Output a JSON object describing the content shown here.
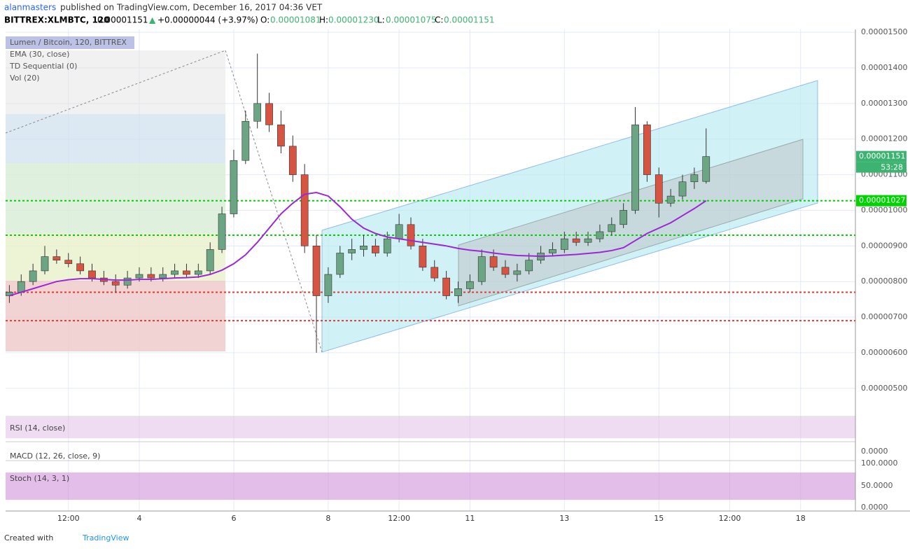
{
  "header": {
    "author": "alanmasters",
    "published": "published on TradingView.com, December 16, 2017 04:36 VET",
    "symbol": "BITTREX:XLMBTC, 120",
    "last": "0.00001151",
    "change": "+0.00000044 (+3.97%)",
    "o_label": "O:",
    "open": "0.00001081",
    "h_label": "H:",
    "high": "0.00001230",
    "l_label": "L:",
    "low": "0.00001075",
    "c_label": "C:",
    "close": "0.00001151"
  },
  "footer": {
    "created": "Created with",
    "brand": "TradingView"
  },
  "chart_data": {
    "type": "candlestick",
    "legend": [
      "Lumen / Bitcoin, 120, BITTREX",
      "EMA (30, close)",
      "TD Sequential (0)",
      "Vol (20)"
    ],
    "up_color": "#6ba583",
    "down_color": "#d75442",
    "ema_color": "#9c27d6",
    "grid": true,
    "xlim": [
      1.17,
      19.16
    ],
    "xticks": [
      {
        "value": 2.5,
        "label": "12:00"
      },
      4,
      6,
      8,
      {
        "value": 9.5,
        "label": "12:00"
      },
      11,
      13,
      15,
      {
        "value": 16.5,
        "label": "12:00"
      },
      18
    ],
    "ylim": [
      4.21e-06,
      1.508e-05
    ],
    "yticks": [
      {
        "value": 5e-06,
        "label": "0.00000500"
      },
      {
        "value": 6e-06,
        "label": "0.00000600"
      },
      {
        "value": 7e-06,
        "label": "0.00000700"
      },
      {
        "value": 8e-06,
        "label": "0.00000800"
      },
      {
        "value": 9e-06,
        "label": "0.00000900"
      },
      {
        "value": 1e-05,
        "label": "0.00001000"
      },
      {
        "value": 1.1e-05,
        "label": "0.00001100"
      },
      {
        "value": 1.2e-05,
        "label": "0.00001200"
      },
      {
        "value": 1.3e-05,
        "label": "0.00001300"
      },
      {
        "value": 1.4e-05,
        "label": "0.00001400"
      },
      {
        "value": 1.5e-05,
        "label": "0.00001500"
      }
    ],
    "x": [
      1.25,
      1.5,
      1.75,
      2,
      2.25,
      2.5,
      2.75,
      3,
      3.25,
      3.5,
      3.75,
      4,
      4.25,
      4.5,
      4.75,
      5,
      5.25,
      5.5,
      5.75,
      6,
      6.25,
      6.5,
      6.75,
      7,
      7.25,
      7.5,
      7.75,
      8,
      8.25,
      8.5,
      8.75,
      9,
      9.25,
      9.5,
      9.75,
      10,
      10.25,
      10.5,
      10.75,
      11,
      11.25,
      11.5,
      11.75,
      12,
      12.25,
      12.5,
      12.75,
      13,
      13.25,
      13.5,
      13.75,
      14,
      14.25,
      14.5,
      14.75,
      15,
      15.25,
      15.5,
      15.75,
      16
    ],
    "open": [
      7.6e-06,
      7.7e-06,
      8e-06,
      8.3e-06,
      8.7e-06,
      8.6e-06,
      8.5e-06,
      8.3e-06,
      8.1e-06,
      8e-06,
      7.9e-06,
      8.1e-06,
      8.2e-06,
      8.1e-06,
      8.2e-06,
      8.3e-06,
      8.2e-06,
      8.3e-06,
      8.9e-06,
      9.9e-06,
      1.14e-05,
      1.25e-05,
      1.3e-05,
      1.24e-05,
      1.18e-05,
      1.1e-05,
      9e-06,
      7.6e-06,
      8.2e-06,
      8.8e-06,
      8.9e-06,
      9e-06,
      8.8e-06,
      9.2e-06,
      9.6e-06,
      9e-06,
      8.4e-06,
      8.1e-06,
      7.6e-06,
      7.8e-06,
      8e-06,
      8.7e-06,
      8.4e-06,
      8.2e-06,
      8.3e-06,
      8.6e-06,
      8.8e-06,
      8.9e-06,
      9.2e-06,
      9.1e-06,
      9.2e-06,
      9.4e-06,
      9.6e-06,
      1e-05,
      1.24e-05,
      1.1e-05,
      1.02e-05,
      1.04e-05,
      1.08e-05,
      1.081e-05
    ],
    "high": [
      7.9e-06,
      8.2e-06,
      8.5e-06,
      9e-06,
      8.9e-06,
      8.8e-06,
      8.7e-06,
      8.5e-06,
      8.3e-06,
      8.2e-06,
      8.3e-06,
      8.4e-06,
      8.4e-06,
      8.4e-06,
      8.5e-06,
      8.5e-06,
      8.5e-06,
      9.1e-06,
      1.01e-05,
      1.17e-05,
      1.28e-05,
      1.44e-05,
      1.33e-05,
      1.28e-05,
      1.21e-05,
      1.13e-05,
      9.3e-06,
      8.4e-06,
      9e-06,
      9.2e-06,
      9.3e-06,
      9.2e-06,
      9.4e-06,
      9.9e-06,
      9.8e-06,
      9.2e-06,
      8.6e-06,
      8.3e-06,
      8e-06,
      8.2e-06,
      8.9e-06,
      8.9e-06,
      8.6e-06,
      8.5e-06,
      8.8e-06,
      9e-06,
      9.1e-06,
      9.4e-06,
      9.4e-06,
      9.4e-06,
      9.6e-06,
      9.8e-06,
      1.02e-05,
      1.29e-05,
      1.25e-05,
      1.12e-05,
      1.06e-05,
      1.1e-05,
      1.12e-05,
      1.23e-05
    ],
    "low": [
      7.4e-06,
      7.6e-06,
      7.9e-06,
      8.2e-06,
      8.5e-06,
      8.4e-06,
      8.2e-06,
      8e-06,
      7.9e-06,
      7.7e-06,
      7.8e-06,
      8e-06,
      8e-06,
      8e-06,
      8.1e-06,
      8.1e-06,
      8.1e-06,
      8.2e-06,
      8.8e-06,
      9.8e-06,
      1.13e-05,
      1.23e-05,
      1.22e-05,
      1.16e-05,
      1.08e-05,
      8.8e-06,
      6e-06,
      7.4e-06,
      8.1e-06,
      8.6e-06,
      8.7e-06,
      8.7e-06,
      8.7e-06,
      9.1e-06,
      8.9e-06,
      8.3e-06,
      8e-06,
      7.5e-06,
      7.4e-06,
      7.7e-06,
      7.9e-06,
      8.3e-06,
      8.1e-06,
      8e-06,
      8.2e-06,
      8.5e-06,
      8.7e-06,
      8.8e-06,
      9e-06,
      9e-06,
      9.1e-06,
      9.3e-06,
      9.5e-06,
      9.9e-06,
      1.08e-05,
      9.8e-06,
      1.01e-05,
      1.03e-05,
      1.06e-05,
      1.075e-05
    ],
    "close": [
      7.7e-06,
      8e-06,
      8.3e-06,
      8.7e-06,
      8.6e-06,
      8.5e-06,
      8.3e-06,
      8.1e-06,
      8e-06,
      7.9e-06,
      8.1e-06,
      8.2e-06,
      8.1e-06,
      8.2e-06,
      8.3e-06,
      8.2e-06,
      8.3e-06,
      8.9e-06,
      9.9e-06,
      1.14e-05,
      1.25e-05,
      1.3e-05,
      1.24e-05,
      1.18e-05,
      1.1e-05,
      9e-06,
      7.6e-06,
      8.2e-06,
      8.8e-06,
      8.9e-06,
      9e-06,
      8.8e-06,
      9.2e-06,
      9.6e-06,
      9e-06,
      8.4e-06,
      8.1e-06,
      7.6e-06,
      7.8e-06,
      8e-06,
      8.7e-06,
      8.4e-06,
      8.2e-06,
      8.3e-06,
      8.6e-06,
      8.8e-06,
      8.9e-06,
      9.2e-06,
      9.1e-06,
      9.2e-06,
      9.4e-06,
      9.6e-06,
      1e-05,
      1.24e-05,
      1.1e-05,
      1.02e-05,
      1.04e-05,
      1.08e-05,
      1.1e-05,
      1.151e-05
    ],
    "ema": [
      7.6e-06,
      7.7e-06,
      7.8e-06,
      7.9e-06,
      8e-06,
      8.05e-06,
      8.08e-06,
      8.08e-06,
      8.06e-06,
      8.04e-06,
      8.04e-06,
      8.06e-06,
      8.06e-06,
      8.08e-06,
      8.1e-06,
      8.11e-06,
      8.13e-06,
      8.2e-06,
      8.32e-06,
      8.5e-06,
      8.75e-06,
      9.1e-06,
      9.5e-06,
      9.9e-06,
      1.02e-05,
      1.045e-05,
      1.05e-05,
      1.04e-05,
      1.01e-05,
      9.75e-06,
      9.5e-06,
      9.35e-06,
      9.25e-06,
      9.2e-06,
      9.15e-06,
      9.1e-06,
      9.05e-06,
      9e-06,
      8.93e-06,
      8.88e-06,
      8.85e-06,
      8.8e-06,
      8.76e-06,
      8.73e-06,
      8.72e-06,
      8.71e-06,
      8.72e-06,
      8.74e-06,
      8.76e-06,
      8.79e-06,
      8.82e-06,
      8.87e-06,
      8.95e-06,
      9.15e-06,
      9.35e-06,
      9.5e-06,
      9.65e-06,
      9.85e-06,
      1.005e-05,
      1.027e-05
    ],
    "levels": [
      {
        "value": 1.027e-05,
        "color": "#00d400"
      },
      {
        "value": 9.3e-06,
        "color": "#00d400"
      },
      {
        "value": 7.7e-06,
        "color": "#e53935"
      },
      {
        "value": 6.9e-06,
        "color": "#e53935"
      }
    ],
    "price_labels": [
      {
        "value": 1.151e-05,
        "label": "0.00001151",
        "color": "#3cb371"
      },
      {
        "value": 1.027e-05,
        "label": "0.00001027",
        "color": "#00d400"
      }
    ],
    "countdown": "53:28",
    "panels": [
      {
        "title": "RSI (14, close)",
        "labels": []
      },
      {
        "title": "MACD (12, 26, close, 9)",
        "labels": [
          "0.0000"
        ]
      },
      {
        "title": "Stoch (14, 3, 1)",
        "labels": [
          "100.0000",
          "50.0000",
          "0.0000"
        ]
      }
    ]
  }
}
